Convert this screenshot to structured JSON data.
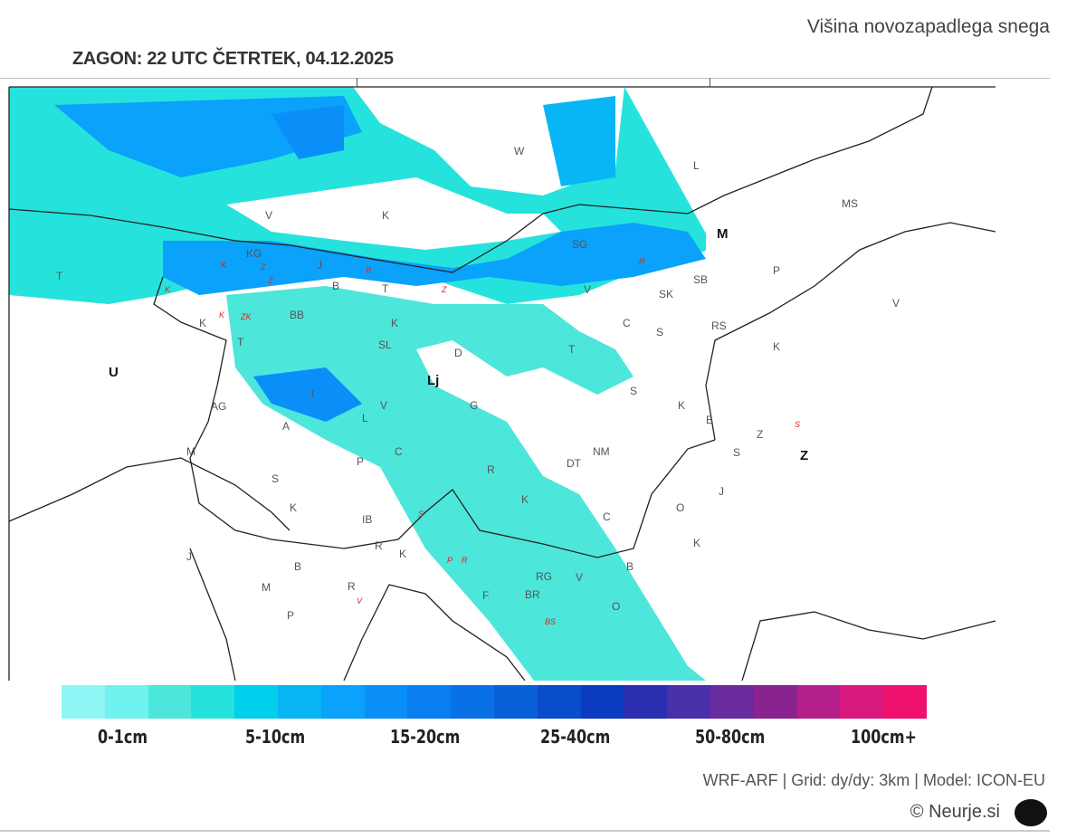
{
  "header": {
    "title": "Višina novozapadlega snega",
    "run": "ZAGON: 22 UTC  ČETRTEK, 04.12.2025"
  },
  "legend": {
    "colors": [
      "#8ef7f5",
      "#6ef3f0",
      "#4de6da",
      "#25e3dc",
      "#00cfee",
      "#08b6f5",
      "#0aa2fb",
      "#0a8ff8",
      "#0a7ef0",
      "#0a70e6",
      "#0a60d8",
      "#0a4dca",
      "#0a3bc0",
      "#2a2eb0",
      "#4a30a8",
      "#6a2b9e",
      "#8a2290",
      "#b51f8c",
      "#d81a80",
      "#f01070"
    ],
    "labels": [
      "0-1cm",
      "5-10cm",
      "15-20cm",
      "25-40cm",
      "50-80cm",
      "100cm+"
    ]
  },
  "map": {
    "labels": [
      "W",
      "L",
      "MS",
      "V",
      "K",
      "M",
      "SG",
      "KG",
      "T",
      "J",
      "B",
      "T",
      "V",
      "SK",
      "SB",
      "P",
      "V",
      "K",
      "BB",
      "K",
      "C",
      "S",
      "RS",
      "T",
      "SL",
      "D",
      "T",
      "K",
      "U",
      "Lj",
      "I",
      "AG",
      "V",
      "G",
      "S",
      "K",
      "L",
      "A",
      "B",
      "Z",
      "S",
      "Z",
      "M",
      "C",
      "P",
      "NM",
      "DT",
      "R",
      "S",
      "K",
      "K",
      "J",
      "O",
      "IB",
      "C",
      "K",
      "R",
      "K",
      "J",
      "B",
      "B",
      "M",
      "R",
      "RG",
      "V",
      "BR",
      "F",
      "P",
      "O"
    ],
    "red_labels": [
      "K",
      "Z",
      "Z",
      "K",
      "R",
      "Z",
      "K",
      "ZK",
      "R",
      "S",
      "S",
      "P",
      "R",
      "V",
      "BS"
    ]
  },
  "footer": {
    "info": "WRF-ARF | Grid: dy/dy: 3km | Model: ICON-EU",
    "copyright": "© Neurje.si"
  }
}
